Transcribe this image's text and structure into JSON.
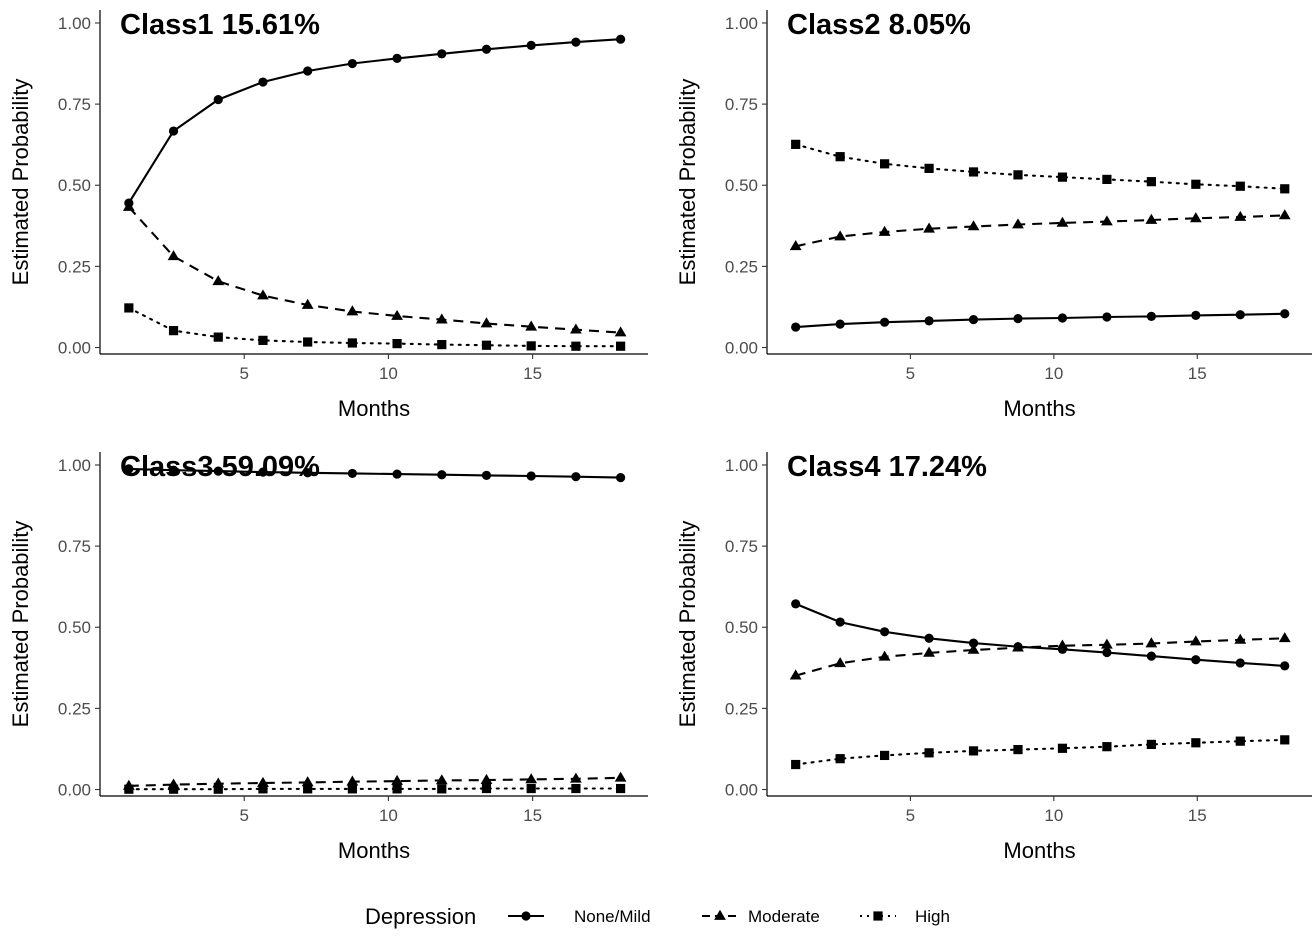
{
  "figure": {
    "legend": {
      "title": "Depression",
      "position": "bottom",
      "entries": [
        {
          "label": "None/Mild",
          "linetype": "solid",
          "marker": "circle"
        },
        {
          "label": "Moderate",
          "linetype": "dashed",
          "marker": "triangle"
        },
        {
          "label": "High",
          "linetype": "dotted",
          "marker": "square"
        }
      ]
    }
  },
  "chart_data": [
    {
      "type": "line",
      "title": "Class1 15.61%",
      "xlabel": "Months",
      "ylabel": "Estimated Probability",
      "xlim": [
        0,
        19
      ],
      "ylim": [
        -0.02,
        1.04
      ],
      "xticks": [
        5,
        10,
        15
      ],
      "yticks": [
        "0.00",
        "0.25",
        "0.50",
        "0.75",
        "1.00"
      ],
      "grid": false,
      "x": [
        1,
        2.55,
        4.1,
        5.65,
        7.2,
        8.75,
        10.3,
        11.85,
        13.4,
        14.95,
        16.5,
        18.05
      ],
      "series": [
        {
          "name": "None/Mild",
          "values": [
            0.445,
            0.667,
            0.764,
            0.818,
            0.852,
            0.875,
            0.891,
            0.905,
            0.919,
            0.931,
            0.941,
            0.95
          ]
        },
        {
          "name": "Moderate",
          "values": [
            0.433,
            0.281,
            0.204,
            0.16,
            0.131,
            0.111,
            0.097,
            0.086,
            0.074,
            0.064,
            0.055,
            0.046
          ]
        },
        {
          "name": "High",
          "values": [
            0.122,
            0.052,
            0.032,
            0.022,
            0.017,
            0.014,
            0.012,
            0.009,
            0.007,
            0.005,
            0.004,
            0.004
          ]
        }
      ]
    },
    {
      "type": "line",
      "title": "Class2 8.05%",
      "xlabel": "Months",
      "ylabel": "Estimated Probability",
      "xlim": [
        0,
        19
      ],
      "ylim": [
        -0.02,
        1.04
      ],
      "xticks": [
        5,
        10,
        15
      ],
      "yticks": [
        "0.00",
        "0.25",
        "0.50",
        "0.75",
        "1.00"
      ],
      "grid": false,
      "x": [
        1,
        2.55,
        4.1,
        5.65,
        7.2,
        8.75,
        10.3,
        11.85,
        13.4,
        14.95,
        16.5,
        18.05
      ],
      "series": [
        {
          "name": "None/Mild",
          "values": [
            0.063,
            0.072,
            0.078,
            0.082,
            0.086,
            0.089,
            0.091,
            0.094,
            0.096,
            0.099,
            0.101,
            0.104
          ]
        },
        {
          "name": "Moderate",
          "values": [
            0.312,
            0.342,
            0.356,
            0.366,
            0.373,
            0.379,
            0.384,
            0.388,
            0.393,
            0.398,
            0.402,
            0.407
          ]
        },
        {
          "name": "High",
          "values": [
            0.626,
            0.588,
            0.566,
            0.552,
            0.541,
            0.532,
            0.525,
            0.518,
            0.511,
            0.503,
            0.497,
            0.489
          ]
        }
      ]
    },
    {
      "type": "line",
      "title": "Class3 59.09%",
      "xlabel": "Months",
      "ylabel": "Estimated Probability",
      "xlim": [
        0,
        19
      ],
      "ylim": [
        -0.02,
        1.04
      ],
      "xticks": [
        5,
        10,
        15
      ],
      "yticks": [
        "0.00",
        "0.25",
        "0.50",
        "0.75",
        "1.00"
      ],
      "grid": false,
      "x": [
        1,
        2.55,
        4.1,
        5.65,
        7.2,
        8.75,
        10.3,
        11.85,
        13.4,
        14.95,
        16.5,
        18.05
      ],
      "series": [
        {
          "name": "None/Mild",
          "values": [
            0.988,
            0.984,
            0.981,
            0.978,
            0.976,
            0.974,
            0.972,
            0.97,
            0.968,
            0.966,
            0.964,
            0.961
          ]
        },
        {
          "name": "Moderate",
          "values": [
            0.011,
            0.015,
            0.018,
            0.02,
            0.022,
            0.024,
            0.026,
            0.028,
            0.029,
            0.031,
            0.033,
            0.036
          ]
        },
        {
          "name": "High",
          "values": [
            0.001,
            0.001,
            0.001,
            0.002,
            0.002,
            0.002,
            0.002,
            0.002,
            0.003,
            0.003,
            0.003,
            0.003
          ]
        }
      ]
    },
    {
      "type": "line",
      "title": "Class4 17.24%",
      "xlabel": "Months",
      "ylabel": "Estimated Probability",
      "xlim": [
        0,
        19
      ],
      "ylim": [
        -0.02,
        1.04
      ],
      "xticks": [
        5,
        10,
        15
      ],
      "yticks": [
        "0.00",
        "0.25",
        "0.50",
        "0.75",
        "1.00"
      ],
      "grid": false,
      "x": [
        1,
        2.55,
        4.1,
        5.65,
        7.2,
        8.75,
        10.3,
        11.85,
        13.4,
        14.95,
        16.5,
        18.05
      ],
      "series": [
        {
          "name": "None/Mild",
          "values": [
            0.572,
            0.516,
            0.486,
            0.466,
            0.451,
            0.44,
            0.432,
            0.422,
            0.411,
            0.4,
            0.39,
            0.381
          ]
        },
        {
          "name": "Moderate",
          "values": [
            0.351,
            0.389,
            0.409,
            0.421,
            0.43,
            0.437,
            0.443,
            0.446,
            0.45,
            0.456,
            0.461,
            0.466
          ]
        },
        {
          "name": "High",
          "values": [
            0.077,
            0.095,
            0.105,
            0.113,
            0.119,
            0.123,
            0.127,
            0.132,
            0.139,
            0.144,
            0.149,
            0.153
          ]
        }
      ]
    }
  ]
}
